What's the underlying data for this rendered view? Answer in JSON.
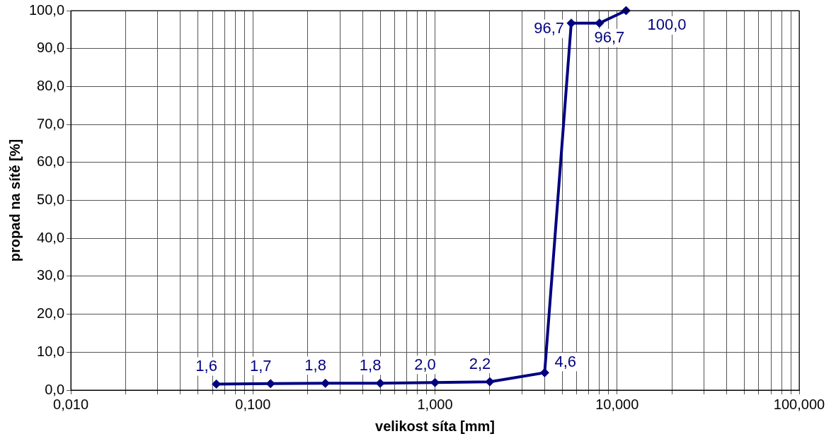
{
  "chart_data": {
    "type": "line",
    "xlabel": "velikost síta [mm]",
    "ylabel": "propad na sítě [%]",
    "x": [
      0.063,
      0.125,
      0.25,
      0.5,
      1,
      2,
      4,
      5.6,
      8,
      11.2
    ],
    "series": [
      {
        "color": "#000080",
        "values": [
          1.6,
          1.7,
          1.8,
          1.8,
          2.0,
          2.2,
          4.6,
          96.7,
          96.7,
          100.0
        ],
        "value_labels": [
          "1,6",
          "1,7",
          "1,8",
          "1,8",
          "2,0",
          "2,2",
          "4,6",
          "96,7",
          "96,7",
          "100,0"
        ]
      }
    ],
    "log": "x",
    "xlim": [
      0.01,
      100
    ],
    "xticks": [
      {
        "value": 0.01,
        "label": "0,010"
      },
      {
        "value": 0.02,
        "label": null
      },
      {
        "value": 0.03,
        "label": null
      },
      {
        "value": 0.04,
        "label": null
      },
      {
        "value": 0.05,
        "label": null
      },
      {
        "value": 0.06,
        "label": null
      },
      {
        "value": 0.07,
        "label": null
      },
      {
        "value": 0.08,
        "label": null
      },
      {
        "value": 0.09,
        "label": null
      },
      {
        "value": 0.1,
        "label": "0,100"
      },
      {
        "value": 0.2,
        "label": null
      },
      {
        "value": 0.3,
        "label": null
      },
      {
        "value": 0.4,
        "label": null
      },
      {
        "value": 0.5,
        "label": null
      },
      {
        "value": 0.6,
        "label": null
      },
      {
        "value": 0.7,
        "label": null
      },
      {
        "value": 0.8,
        "label": null
      },
      {
        "value": 0.9,
        "label": null
      },
      {
        "value": 1,
        "label": "1,000"
      },
      {
        "value": 2,
        "label": null
      },
      {
        "value": 3,
        "label": null
      },
      {
        "value": 4,
        "label": null
      },
      {
        "value": 5,
        "label": null
      },
      {
        "value": 6,
        "label": null
      },
      {
        "value": 7,
        "label": null
      },
      {
        "value": 8,
        "label": null
      },
      {
        "value": 9,
        "label": null
      },
      {
        "value": 10,
        "label": "10,000"
      },
      {
        "value": 20,
        "label": null
      },
      {
        "value": 30,
        "label": null
      },
      {
        "value": 40,
        "label": null
      },
      {
        "value": 50,
        "label": null
      },
      {
        "value": 60,
        "label": null
      },
      {
        "value": 70,
        "label": null
      },
      {
        "value": 80,
        "label": null
      },
      {
        "value": 90,
        "label": null
      },
      {
        "value": 100,
        "label": "100,000"
      }
    ],
    "ylim": [
      0,
      100
    ],
    "yticks": [
      {
        "value": 0,
        "label": "0,0"
      },
      {
        "value": 10,
        "label": "10,0"
      },
      {
        "value": 20,
        "label": "20,0"
      },
      {
        "value": 30,
        "label": "30,0"
      },
      {
        "value": 40,
        "label": "40,0"
      },
      {
        "value": 50,
        "label": "50,0"
      },
      {
        "value": 60,
        "label": "60,0"
      },
      {
        "value": 70,
        "label": "70,0"
      },
      {
        "value": 80,
        "label": "80,0"
      },
      {
        "value": 90,
        "label": "90,0"
      },
      {
        "value": 100,
        "label": "100,0"
      }
    ],
    "grid": true,
    "legend": false,
    "marker": "diamond",
    "line_style": "solid"
  }
}
